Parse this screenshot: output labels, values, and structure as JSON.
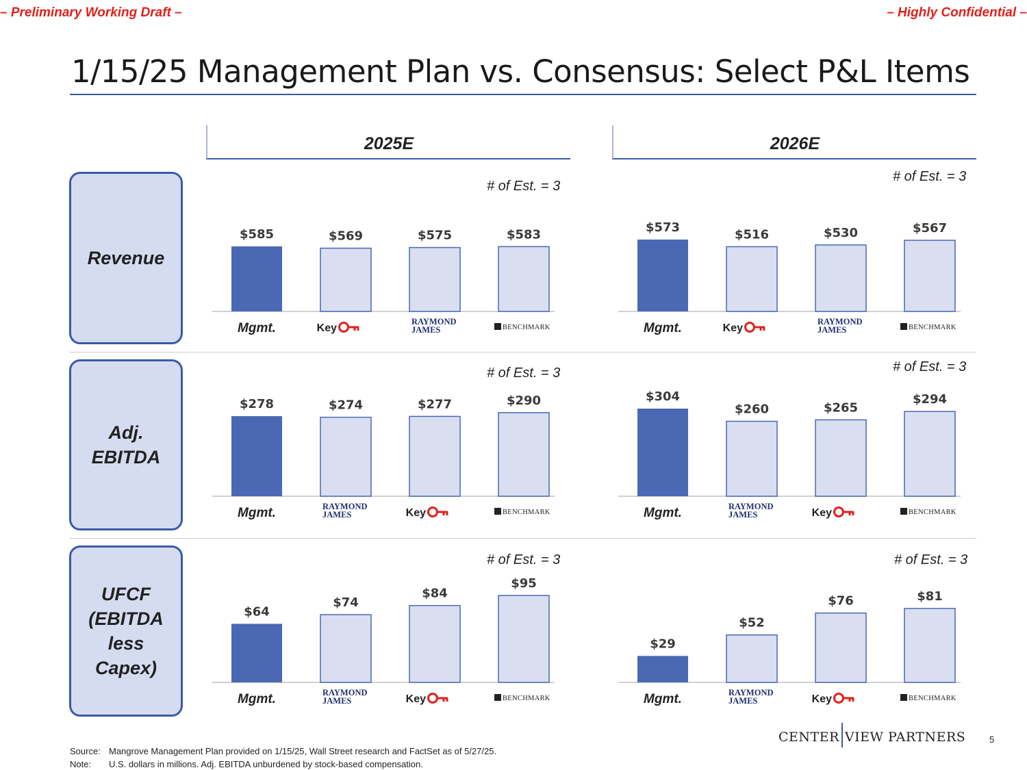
{
  "header": {
    "left": "– Preliminary Working Draft –",
    "right": "– Highly Confidential –",
    "title": "1/15/25 Management Plan vs. Consensus: Select P&L Items"
  },
  "columns": [
    "2025E",
    "2026E"
  ],
  "rows": [
    "Revenue",
    "Adj.\nEBITDA",
    "UFCF\n(EBITDA\nless\nCapex)"
  ],
  "colors": {
    "mgmt": "#4a68b3",
    "est": "#d9dff0",
    "est_border": "#4a68b3",
    "accent": "#3b5aa5",
    "red": "#e0201c"
  },
  "chart_data": [
    {
      "type": "bar",
      "title": "Revenue 2025E",
      "note": "# of Est. = 3",
      "categories": [
        "Mgmt.",
        "Key",
        "Raymond James",
        "Benchmark"
      ],
      "values": [
        585,
        569,
        575,
        583
      ],
      "labels": [
        "$585",
        "$569",
        "$575",
        "$583"
      ],
      "ylim": [
        0,
        585
      ]
    },
    {
      "type": "bar",
      "title": "Revenue 2026E",
      "note": "# of Est. = 3",
      "categories": [
        "Mgmt.",
        "Key",
        "Raymond James",
        "Benchmark"
      ],
      "values": [
        573,
        516,
        530,
        567
      ],
      "labels": [
        "$573",
        "$516",
        "$530",
        "$567"
      ],
      "ylim": [
        0,
        573
      ]
    },
    {
      "type": "bar",
      "title": "Adj. EBITDA 2025E",
      "note": "# of Est. = 3",
      "categories": [
        "Mgmt.",
        "Raymond James",
        "Key",
        "Benchmark"
      ],
      "values": [
        278,
        274,
        277,
        290
      ],
      "labels": [
        "$278",
        "$274",
        "$277",
        "$290"
      ],
      "ylim": [
        0,
        304
      ]
    },
    {
      "type": "bar",
      "title": "Adj. EBITDA 2026E",
      "note": "# of Est. = 3",
      "categories": [
        "Mgmt.",
        "Raymond James",
        "Key",
        "Benchmark"
      ],
      "values": [
        304,
        260,
        265,
        294
      ],
      "labels": [
        "$304",
        "$260",
        "$265",
        "$294"
      ],
      "ylim": [
        0,
        304
      ]
    },
    {
      "type": "bar",
      "title": "UFCF 2025E",
      "note": "# of Est. = 3",
      "categories": [
        "Mgmt.",
        "Raymond James",
        "Key",
        "Benchmark"
      ],
      "values": [
        64,
        74,
        84,
        95
      ],
      "labels": [
        "$64",
        "$74",
        "$84",
        "$95"
      ],
      "ylim": [
        0,
        95
      ]
    },
    {
      "type": "bar",
      "title": "UFCF 2026E",
      "note": "# of Est. = 3",
      "categories": [
        "Mgmt.",
        "Raymond James",
        "Key",
        "Benchmark"
      ],
      "values": [
        29,
        52,
        76,
        81
      ],
      "labels": [
        "$29",
        "$52",
        "$76",
        "$81"
      ],
      "ylim": [
        0,
        81
      ]
    }
  ],
  "brand_text": {
    "mgmt": "Mgmt.",
    "key": "Key",
    "rj_line1": "RAYMOND",
    "rj_line2": "JAMES",
    "benchmark": "BENCHMARK"
  },
  "footer": {
    "source_label": "Source:",
    "source_text": "Mangrove Management Plan provided on 1/15/25, Wall Street research and FactSet as of 5/27/25.",
    "note_label": "Note:",
    "note_text": "U.S. dollars in millions. Adj. EBITDA unburdened by stock-based compensation.",
    "logo_left": "CENTER",
    "logo_right": "VIEW PARTNERS",
    "page": "5"
  }
}
